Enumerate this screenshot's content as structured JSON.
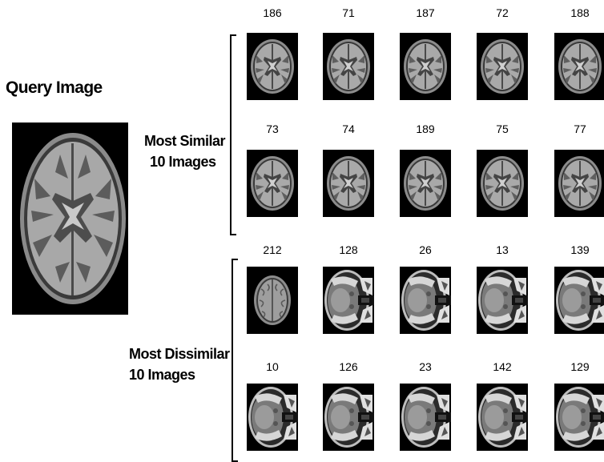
{
  "query": {
    "title": "Query Image"
  },
  "groups": [
    {
      "label_line1": "Most Similar",
      "label_line2": "10 Images",
      "rows": [
        {
          "ids": [
            "186",
            "71",
            "187",
            "72",
            "188"
          ],
          "type": "axial-ventricle"
        },
        {
          "ids": [
            "73",
            "74",
            "189",
            "75",
            "77"
          ],
          "type": "axial-ventricle"
        }
      ]
    },
    {
      "label_line1": "Most Dissimilar",
      "label_line2": "10 Images",
      "rows": [
        {
          "ids": [
            "212",
            "128",
            "26",
            "13",
            "139"
          ],
          "types": [
            "axial-small",
            "base-skull",
            "base-skull",
            "base-skull",
            "base-skull"
          ]
        },
        {
          "ids": [
            "10",
            "126",
            "23",
            "142",
            "129"
          ],
          "types": [
            "base-skull",
            "base-skull",
            "base-skull",
            "base-skull",
            "base-skull"
          ]
        }
      ]
    }
  ]
}
